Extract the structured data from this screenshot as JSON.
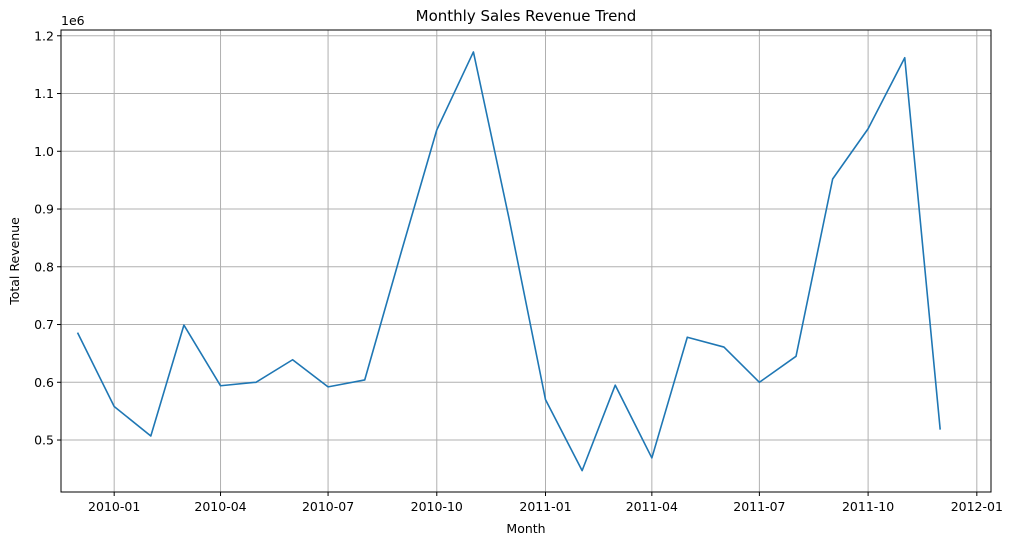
{
  "chart_data": {
    "type": "line",
    "title": "Monthly Sales Revenue Trend",
    "xlabel": "Month",
    "ylabel": "Total Revenue",
    "y_offset_label": "1e6",
    "grid": true,
    "color": "#1f77b4",
    "x_ticks": [
      "2010-01",
      "2010-04",
      "2010-07",
      "2010-10",
      "2011-01",
      "2011-04",
      "2011-07",
      "2011-10",
      "2012-01"
    ],
    "y_ticks": [
      "0.5",
      "0.6",
      "0.7",
      "0.8",
      "0.9",
      "1.0",
      "1.1",
      "1.2"
    ],
    "xlim": [
      "2009-11-17",
      "2012-01-13"
    ],
    "ylim": [
      0.41,
      1.21
    ],
    "y_unit_multiplier": 1000000,
    "x": [
      "2009-12-01",
      "2010-01-01",
      "2010-02-01",
      "2010-03-01",
      "2010-04-01",
      "2010-05-01",
      "2010-06-01",
      "2010-07-01",
      "2010-08-01",
      "2010-09-01",
      "2010-10-01",
      "2010-11-01",
      "2010-12-01",
      "2011-01-01",
      "2011-02-01",
      "2011-03-01",
      "2011-04-01",
      "2011-05-01",
      "2011-06-01",
      "2011-07-01",
      "2011-08-01",
      "2011-09-01",
      "2011-10-01",
      "2011-11-01",
      "2011-12-01"
    ],
    "y": [
      0.686,
      0.558,
      0.507,
      0.699,
      0.594,
      0.6,
      0.639,
      0.592,
      0.604,
      0.826,
      1.037,
      1.172,
      0.885,
      0.57,
      0.447,
      0.595,
      0.469,
      0.678,
      0.661,
      0.6,
      0.645,
      0.952,
      1.039,
      1.162,
      0.518
    ]
  }
}
